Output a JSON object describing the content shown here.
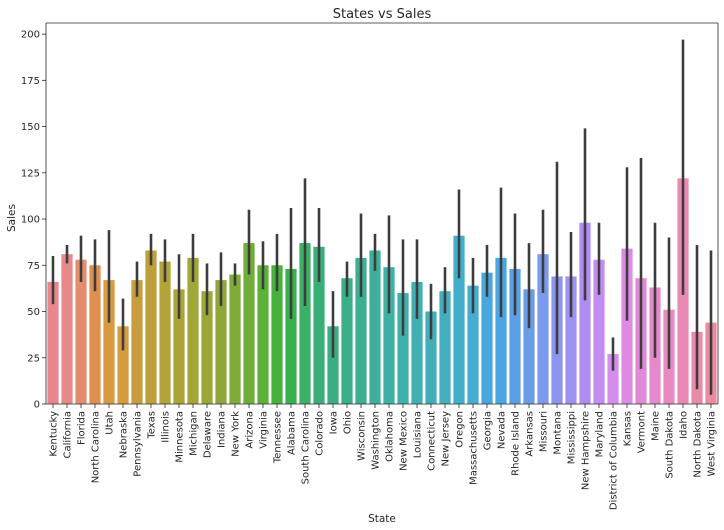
{
  "chart_data": {
    "type": "bar",
    "title": "States vs Sales",
    "xlabel": "State",
    "ylabel": "Sales",
    "ylim": [
      0,
      206
    ],
    "yticks": [
      0,
      25,
      50,
      75,
      100,
      125,
      150,
      175,
      200
    ],
    "grid": false,
    "categories": [
      "Kentucky",
      "California",
      "Florida",
      "North Carolina",
      "Utah",
      "Nebraska",
      "Pennsylvania",
      "Texas",
      "Illinois",
      "Minnesota",
      "Michigan",
      "Delaware",
      "Indiana",
      "New York",
      "Arizona",
      "Virginia",
      "Tennessee",
      "Alabama",
      "South Carolina",
      "Colorado",
      "Iowa",
      "Ohio",
      "Wisconsin",
      "Washington",
      "Oklahoma",
      "New Mexico",
      "Louisiana",
      "Connecticut",
      "New Jersey",
      "Oregon",
      "Massachusetts",
      "Georgia",
      "Nevada",
      "Rhode Island",
      "Arkansas",
      "Missouri",
      "Montana",
      "Mississippi",
      "New Hampshire",
      "Maryland",
      "District of Columbia",
      "Kansas",
      "Vermont",
      "Maine",
      "South Dakota",
      "Idaho",
      "North Dakota",
      "West Virginia"
    ],
    "values": [
      66,
      81,
      78,
      75,
      67,
      42,
      67,
      83,
      77,
      62,
      79,
      61,
      67,
      70,
      87,
      75,
      75,
      73,
      87,
      85,
      42,
      68,
      79,
      83,
      74,
      60,
      66,
      50,
      61,
      91,
      64,
      71,
      79,
      73,
      62,
      81,
      69,
      69,
      98,
      78,
      27,
      84,
      68,
      63,
      51,
      122,
      39,
      44
    ],
    "ci_low": [
      54,
      76,
      66,
      61,
      44,
      29,
      58,
      75,
      66,
      46,
      66,
      48,
      53,
      64,
      70,
      62,
      61,
      46,
      53,
      66,
      25,
      58,
      58,
      72,
      49,
      37,
      46,
      35,
      49,
      68,
      49,
      58,
      47,
      48,
      41,
      60,
      27,
      47,
      56,
      59,
      18,
      45,
      19,
      25,
      19,
      59,
      8,
      5
    ],
    "ci_high": [
      80,
      86,
      91,
      89,
      94,
      57,
      77,
      92,
      89,
      81,
      92,
      76,
      82,
      76,
      105,
      88,
      92,
      106,
      122,
      106,
      61,
      77,
      103,
      92,
      102,
      89,
      89,
      65,
      74,
      116,
      79,
      86,
      117,
      103,
      87,
      105,
      131,
      93,
      149,
      98,
      36,
      128,
      133,
      98,
      90,
      197,
      86,
      83
    ],
    "bar_colors": [
      "#e8868c",
      "#e7898a",
      "#e48c6c",
      "#df8f50",
      "#d99a40",
      "#d69a3f",
      "#c99c3d",
      "#be9f3a",
      "#b4a339",
      "#aba438",
      "#a2a738",
      "#9aa838",
      "#8da838",
      "#7fab38",
      "#6fae38",
      "#5cb239",
      "#46b23c",
      "#3ab14f",
      "#3ab166",
      "#3aae77",
      "#3aad82",
      "#3bae8a",
      "#3caf93",
      "#3daf9b",
      "#3eb0a4",
      "#3fb0ab",
      "#40afb1",
      "#41aeb8",
      "#42aebf",
      "#43aec9",
      "#45acd2",
      "#46a8dc",
      "#4aa6e3",
      "#5aa0e6",
      "#6a9ce7",
      "#7b9aee",
      "#8c96f1",
      "#9e92f3",
      "#b08cf3",
      "#c38cf1",
      "#d48ced",
      "#dc8ae4",
      "#e089d8",
      "#e589cc",
      "#e889bf",
      "#ea89b4",
      "#eb89a9",
      "#ec8a9f"
    ]
  }
}
